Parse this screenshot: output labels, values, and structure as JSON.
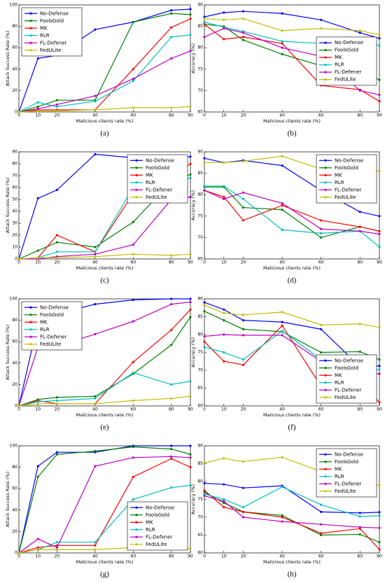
{
  "chart_data": [
    {
      "type": "line",
      "caption": "(a)",
      "xlabel": "Malicious clients rate (%)",
      "ylabel": "Attack Success Rate (%)",
      "x": [
        0,
        10,
        20,
        40,
        60,
        80,
        90
      ],
      "xlim": [
        0,
        90
      ],
      "xticks": [
        0,
        10,
        20,
        40,
        60,
        80,
        90
      ],
      "ylim": [
        0,
        100
      ],
      "yticks": [
        0,
        20,
        40,
        60,
        80,
        100
      ],
      "legend": "upper left",
      "series": [
        {
          "name": "No-Defense",
          "color": "#0000ff",
          "values": [
            0,
            50,
            53,
            77,
            84,
            95,
            96
          ]
        },
        {
          "name": "FoolsGold",
          "color": "#008000",
          "values": [
            0,
            5,
            11,
            11,
            84,
            92,
            91
          ]
        },
        {
          "name": "MK",
          "color": "#ff0000",
          "values": [
            0,
            2,
            2,
            2,
            40,
            79,
            87
          ]
        },
        {
          "name": "RLR",
          "color": "#00bfbf",
          "values": [
            0,
            9,
            5,
            10,
            29,
            70,
            72
          ]
        },
        {
          "name": "FL-Defener",
          "color": "#bf00bf",
          "values": [
            0,
            3,
            7,
            15,
            31,
            50,
            57
          ]
        },
        {
          "name": "FedULite",
          "color": "#bfbf00",
          "values": [
            0,
            1,
            1,
            2,
            4,
            4,
            5
          ]
        }
      ]
    },
    {
      "type": "line",
      "caption": "(b)",
      "xlabel": "Malicious clients rate (%)",
      "ylabel": "Accuracy (%)",
      "x": [
        0,
        10,
        20,
        40,
        60,
        80,
        90
      ],
      "xlim": [
        0,
        90
      ],
      "xticks": [
        0,
        10,
        20,
        40,
        60,
        80,
        90
      ],
      "ylim": [
        65,
        90
      ],
      "yticks": [
        65,
        70,
        75,
        80,
        85,
        90
      ],
      "legend": "center right",
      "series": [
        {
          "name": "No-Defense",
          "color": "#0000ff",
          "values": [
            87.2,
            88.2,
            88.5,
            88,
            86.5,
            83.5,
            82.2
          ]
        },
        {
          "name": "FoolsGold",
          "color": "#008000",
          "values": [
            85.5,
            85,
            81.8,
            78.5,
            75.8,
            74.5,
            72.5
          ]
        },
        {
          "name": "MK",
          "color": "#ff0000",
          "values": [
            85.5,
            82,
            82.5,
            81,
            71.2,
            70.2,
            67.5
          ]
        },
        {
          "name": "RLR",
          "color": "#00bfbf",
          "values": [
            86,
            84.8,
            83.8,
            81.5,
            81,
            81.5,
            80.5
          ]
        },
        {
          "name": "FL-Defener",
          "color": "#bf00bf",
          "values": [
            82.5,
            84.5,
            83.5,
            80,
            78,
            70,
            69
          ]
        },
        {
          "name": "FedULite",
          "color": "#bfbf00",
          "values": [
            86.8,
            86.5,
            86.8,
            84,
            84.5,
            84,
            83
          ]
        }
      ]
    },
    {
      "type": "line",
      "caption": "(c)",
      "xlabel": "Malicious clients rate (%)",
      "ylabel": "Attack Success Rate (%)",
      "x": [
        0,
        10,
        20,
        40,
        60,
        80,
        90
      ],
      "xlim": [
        0,
        90
      ],
      "xticks": [
        0,
        10,
        20,
        40,
        60,
        80,
        90
      ],
      "ylim": [
        0,
        90
      ],
      "yticks": [
        0,
        10,
        20,
        30,
        40,
        50,
        60,
        70,
        80,
        90
      ],
      "legend": "upper right",
      "series": [
        {
          "name": "No-Defense",
          "color": "#0000ff",
          "values": [
            0,
            51,
            58,
            88,
            85,
            85,
            86
          ]
        },
        {
          "name": "FoolsGold",
          "color": "#008000",
          "values": [
            0,
            7,
            14,
            10,
            31,
            65,
            71
          ]
        },
        {
          "name": "MK",
          "color": "#ff0000",
          "values": [
            0,
            1,
            20,
            6,
            55,
            68,
            80
          ]
        },
        {
          "name": "RLR",
          "color": "#00bfbf",
          "values": [
            0,
            1,
            6,
            6,
            60,
            66,
            68
          ]
        },
        {
          "name": "FL-Defener",
          "color": "#bf00bf",
          "values": [
            0,
            0,
            2,
            4,
            12,
            50,
            52
          ]
        },
        {
          "name": "FedULite",
          "color": "#bfbf00",
          "values": [
            0,
            1,
            1,
            2,
            4,
            3,
            4
          ]
        }
      ]
    },
    {
      "type": "line",
      "caption": "(d)",
      "xlabel": "Malicious clients rate (%)",
      "ylabel": "Accuracy (%)",
      "x": [
        0,
        10,
        20,
        40,
        60,
        80,
        90
      ],
      "xlim": [
        0,
        90
      ],
      "xticks": [
        0,
        10,
        20,
        40,
        60,
        80,
        90
      ],
      "ylim": [
        65,
        90
      ],
      "yticks": [
        65,
        70,
        75,
        80,
        85,
        90
      ],
      "legend": "upper right",
      "series": [
        {
          "name": "No-Defense",
          "color": "#0000ff",
          "values": [
            88.5,
            87.5,
            88,
            86.8,
            81,
            76,
            75
          ]
        },
        {
          "name": "FoolsGold",
          "color": "#008000",
          "values": [
            81.8,
            81.8,
            77,
            76.5,
            70,
            72.5,
            71.5
          ]
        },
        {
          "name": "MK",
          "color": "#ff0000",
          "values": [
            81,
            79.5,
            74,
            77.5,
            74,
            72.5,
            71.5
          ]
        },
        {
          "name": "RLR",
          "color": "#00bfbf",
          "values": [
            82,
            82,
            79,
            71.8,
            71,
            71.5,
            67.8
          ]
        },
        {
          "name": "FL-Defener",
          "color": "#bf00bf",
          "values": [
            81,
            79,
            80.5,
            78,
            72,
            71.5,
            70.8
          ]
        },
        {
          "name": "FedULite",
          "color": "#bfbf00",
          "values": [
            87.5,
            87.5,
            87.8,
            89,
            86,
            86.5,
            85.5
          ]
        }
      ]
    },
    {
      "type": "line",
      "caption": "(e)",
      "xlabel": "Malicious clients rate (%)",
      "ylabel": "Attack Success Rate (%)",
      "x": [
        0,
        10,
        20,
        40,
        60,
        80,
        90
      ],
      "xlim": [
        0,
        90
      ],
      "xticks": [
        0,
        10,
        20,
        40,
        60,
        80,
        90
      ],
      "ylim": [
        0,
        100
      ],
      "yticks": [
        0,
        20,
        40,
        60,
        80,
        100
      ],
      "legend": "upper left",
      "series": [
        {
          "name": "No-Defense",
          "color": "#0000ff",
          "values": [
            0,
            78,
            86,
            95,
            99,
            100,
            100
          ]
        },
        {
          "name": "FoolsGold",
          "color": "#008000",
          "values": [
            0,
            6,
            8,
            9,
            30,
            57,
            83
          ]
        },
        {
          "name": "MK",
          "color": "#ff0000",
          "values": [
            0,
            5,
            2,
            2,
            41,
            71,
            90
          ]
        },
        {
          "name": "RLR",
          "color": "#00bfbf",
          "values": [
            0,
            4,
            5,
            7,
            31,
            20,
            23
          ]
        },
        {
          "name": "FL-Defener",
          "color": "#bf00bf",
          "values": [
            0,
            55,
            56,
            67,
            79,
            95,
            97
          ]
        },
        {
          "name": "FedULite",
          "color": "#bfbf00",
          "values": [
            0,
            2,
            2,
            2,
            5,
            7,
            9
          ]
        }
      ]
    },
    {
      "type": "line",
      "caption": "(f)",
      "xlabel": "Malicious clients rate (%)",
      "ylabel": "Accuracy (%)",
      "x": [
        0,
        10,
        20,
        40,
        60,
        80,
        90
      ],
      "xlim": [
        0,
        90
      ],
      "xticks": [
        0,
        10,
        20,
        40,
        60,
        80,
        90
      ],
      "ylim": [
        60,
        90
      ],
      "yticks": [
        60,
        65,
        70,
        75,
        80,
        85,
        90
      ],
      "legend": "lower right",
      "series": [
        {
          "name": "No-Defense",
          "color": "#0000ff",
          "values": [
            89,
            87,
            84,
            83.5,
            81.5,
            71,
            71.2
          ]
        },
        {
          "name": "FoolsGold",
          "color": "#008000",
          "values": [
            86.5,
            84,
            81.5,
            80.8,
            75,
            75.2,
            73
          ]
        },
        {
          "name": "MK",
          "color": "#ff0000",
          "values": [
            78,
            72.5,
            71.5,
            82.5,
            65.5,
            67,
            61
          ]
        },
        {
          "name": "RLR",
          "color": "#00bfbf",
          "values": [
            76.5,
            75,
            73,
            81,
            73,
            70,
            70.2
          ]
        },
        {
          "name": "FL-Defener",
          "color": "#bf00bf",
          "values": [
            79.5,
            80,
            79.8,
            79.8,
            72.5,
            69.2,
            69
          ]
        },
        {
          "name": "FedULite",
          "color": "#bfbf00",
          "values": [
            88.3,
            86,
            85.5,
            86.3,
            82.7,
            83,
            82
          ]
        }
      ]
    },
    {
      "type": "line",
      "caption": "(g)",
      "xlabel": "Malicious clients rate (%)",
      "ylabel": "Attack Success Rate (%)",
      "x": [
        0,
        10,
        20,
        40,
        60,
        80,
        90
      ],
      "xlim": [
        0,
        90
      ],
      "xticks": [
        0,
        10,
        20,
        40,
        60,
        80,
        90
      ],
      "ylim": [
        0,
        100
      ],
      "yticks": [
        0,
        20,
        40,
        60,
        80,
        100
      ],
      "legend": "lower right",
      "series": [
        {
          "name": "No-Defense",
          "color": "#0000ff",
          "values": [
            0,
            81,
            94,
            94,
            100,
            100,
            100
          ]
        },
        {
          "name": "FoolsGold",
          "color": "#008000",
          "values": [
            0,
            71,
            92,
            95,
            99,
            97,
            92
          ]
        },
        {
          "name": "MK",
          "color": "#ff0000",
          "values": [
            0,
            5,
            7,
            7,
            71,
            88,
            80
          ]
        },
        {
          "name": "RLR",
          "color": "#00bfbf",
          "values": [
            0,
            3,
            10,
            10,
            50,
            61,
            63
          ]
        },
        {
          "name": "FL-Defener",
          "color": "#bf00bf",
          "values": [
            0,
            13,
            5,
            81,
            89,
            90,
            89
          ]
        },
        {
          "name": "FedULite",
          "color": "#bfbf00",
          "values": [
            0,
            3,
            3,
            3,
            5,
            4,
            4
          ]
        }
      ]
    },
    {
      "type": "line",
      "caption": "(h)",
      "xlabel": "Malicious clients rate (%)",
      "ylabel": "Accuracy (%)",
      "x": [
        0,
        10,
        20,
        40,
        60,
        80,
        90
      ],
      "xlim": [
        0,
        90
      ],
      "xticks": [
        0,
        10,
        20,
        40,
        60,
        80,
        90
      ],
      "ylim": [
        60,
        90
      ],
      "yticks": [
        60,
        65,
        70,
        75,
        80,
        85,
        90
      ],
      "legend": "upper right",
      "series": [
        {
          "name": "No-Defense",
          "color": "#0000ff",
          "values": [
            79.5,
            79.2,
            78.2,
            78.8,
            71.5,
            71.2,
            71.4
          ]
        },
        {
          "name": "FoolsGold",
          "color": "#008000",
          "values": [
            77,
            74,
            71.5,
            70.5,
            65,
            65.2,
            63
          ]
        },
        {
          "name": "MK",
          "color": "#ff0000",
          "values": [
            77.5,
            72.8,
            71.5,
            70,
            65.5,
            66.8,
            61
          ]
        },
        {
          "name": "RLR",
          "color": "#00bfbf",
          "values": [
            76.5,
            75,
            72.8,
            78.5,
            73.5,
            70.2,
            70.4
          ]
        },
        {
          "name": "FL-Defener",
          "color": "#bf00bf",
          "values": [
            76,
            74.5,
            70,
            68.8,
            68,
            67.2,
            67
          ]
        },
        {
          "name": "FedULite",
          "color": "#bfbf00",
          "values": [
            85.2,
            86.5,
            85.6,
            86.8,
            82.8,
            79.5,
            79
          ]
        }
      ]
    }
  ]
}
